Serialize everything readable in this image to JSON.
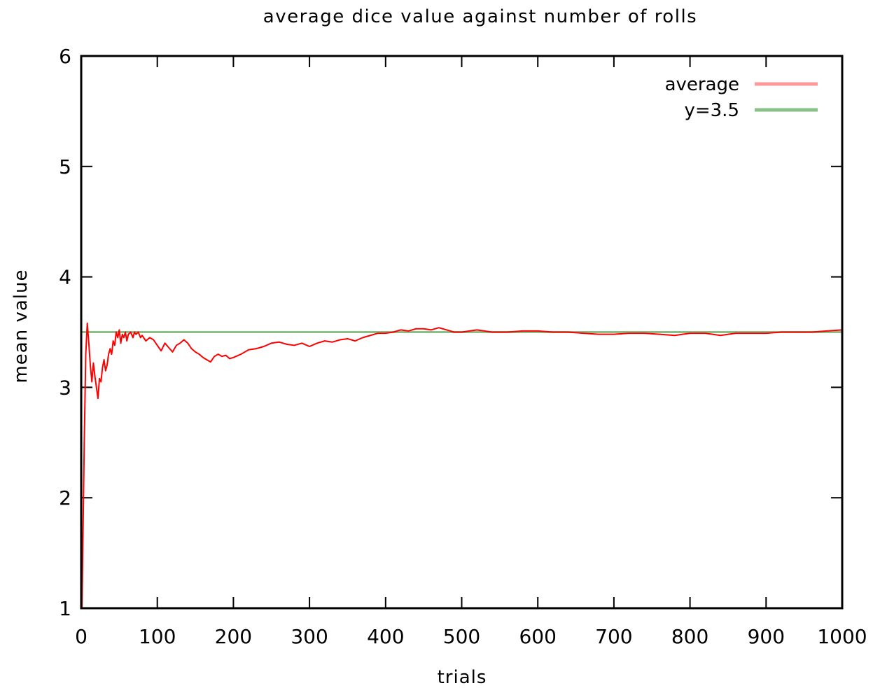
{
  "chart_data": {
    "type": "line",
    "title": "average dice value against number of rolls",
    "xlabel": "trials",
    "ylabel": "mean value",
    "xlim": [
      0,
      1000
    ],
    "ylim": [
      1,
      6
    ],
    "xticks": [
      0,
      100,
      200,
      300,
      400,
      500,
      600,
      700,
      800,
      900,
      1000
    ],
    "yticks": [
      1,
      2,
      3,
      4,
      5,
      6
    ],
    "grid": false,
    "legend_position": "top-right",
    "series": [
      {
        "name": "average",
        "color": "#ff0000",
        "legend_color": "#ff9999",
        "x": [
          1,
          4,
          6,
          8,
          10,
          12,
          14,
          16,
          18,
          20,
          22,
          24,
          26,
          28,
          30,
          32,
          34,
          36,
          38,
          40,
          42,
          44,
          46,
          48,
          50,
          52,
          54,
          56,
          58,
          60,
          62,
          65,
          68,
          70,
          72,
          75,
          78,
          80,
          85,
          90,
          95,
          100,
          105,
          110,
          115,
          120,
          125,
          130,
          135,
          140,
          145,
          150,
          155,
          160,
          165,
          170,
          175,
          180,
          185,
          190,
          195,
          200,
          210,
          220,
          230,
          240,
          250,
          260,
          270,
          280,
          290,
          300,
          310,
          320,
          330,
          340,
          350,
          360,
          370,
          380,
          390,
          400,
          410,
          420,
          430,
          440,
          450,
          460,
          470,
          480,
          490,
          500,
          520,
          540,
          560,
          580,
          600,
          620,
          640,
          660,
          680,
          700,
          720,
          740,
          760,
          780,
          800,
          820,
          840,
          860,
          880,
          900,
          920,
          940,
          960,
          980,
          1000
        ],
        "values": [
          1.0,
          2.5,
          3.3,
          3.58,
          3.4,
          3.2,
          3.05,
          3.22,
          3.1,
          3.0,
          2.9,
          3.08,
          3.05,
          3.18,
          3.25,
          3.15,
          3.2,
          3.3,
          3.35,
          3.3,
          3.42,
          3.38,
          3.5,
          3.45,
          3.52,
          3.4,
          3.48,
          3.45,
          3.5,
          3.42,
          3.48,
          3.5,
          3.45,
          3.5,
          3.48,
          3.5,
          3.45,
          3.47,
          3.42,
          3.45,
          3.43,
          3.38,
          3.33,
          3.4,
          3.36,
          3.32,
          3.38,
          3.4,
          3.43,
          3.4,
          3.35,
          3.32,
          3.3,
          3.27,
          3.25,
          3.23,
          3.28,
          3.3,
          3.28,
          3.29,
          3.26,
          3.27,
          3.3,
          3.34,
          3.35,
          3.37,
          3.4,
          3.41,
          3.39,
          3.38,
          3.4,
          3.37,
          3.4,
          3.42,
          3.41,
          3.43,
          3.44,
          3.42,
          3.45,
          3.47,
          3.49,
          3.49,
          3.5,
          3.52,
          3.51,
          3.53,
          3.53,
          3.52,
          3.54,
          3.52,
          3.5,
          3.5,
          3.52,
          3.5,
          3.5,
          3.51,
          3.51,
          3.5,
          3.5,
          3.49,
          3.48,
          3.48,
          3.49,
          3.49,
          3.48,
          3.47,
          3.49,
          3.49,
          3.47,
          3.49,
          3.49,
          3.49,
          3.5,
          3.5,
          3.5,
          3.51,
          3.52
        ]
      },
      {
        "name": "y=3.5",
        "color": "#88c088",
        "x": [
          0,
          1000
        ],
        "values": [
          3.5,
          3.5
        ]
      }
    ]
  }
}
